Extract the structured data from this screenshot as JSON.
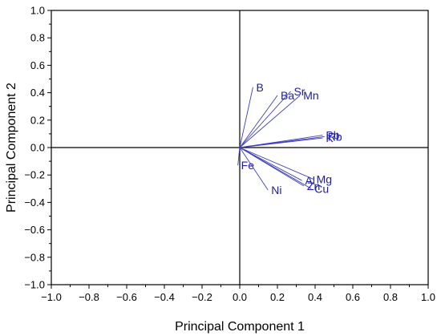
{
  "chart_data": {
    "type": "scatter",
    "subtype": "pca-loading-biplot",
    "title": "",
    "xlabel": "Principal Component 1",
    "ylabel": "Principal Component 2",
    "xlim": [
      -1.0,
      1.0
    ],
    "ylim": [
      -1.0,
      1.0
    ],
    "x_ticks": [
      -1.0,
      -0.8,
      -0.6,
      -0.4,
      -0.2,
      0.0,
      0.2,
      0.4,
      0.6,
      0.8,
      1.0
    ],
    "y_ticks": [
      -1.0,
      -0.8,
      -0.6,
      -0.4,
      -0.2,
      0.0,
      0.2,
      0.4,
      0.6,
      0.8,
      1.0
    ],
    "x_tick_labels": [
      "−1.0",
      "−0.8",
      "−0.6",
      "−0.4",
      "−0.2",
      "0.0",
      "0.2",
      "0.4",
      "0.6",
      "0.8",
      "1.0"
    ],
    "y_tick_labels": [
      "−1.0",
      "−0.8",
      "−0.6",
      "−0.4",
      "−0.2",
      "0.0",
      "0.2",
      "0.4",
      "0.6",
      "0.8",
      "1.0"
    ],
    "grid": false,
    "zero_lines": true,
    "vector_color": "#3f3fbf",
    "label_color": "#2020a0",
    "points": [
      {
        "label": "B",
        "x": 0.07,
        "y": 0.44
      },
      {
        "label": "Ba",
        "x": 0.2,
        "y": 0.38
      },
      {
        "label": "Sr",
        "x": 0.27,
        "y": 0.41
      },
      {
        "label": "Mn",
        "x": 0.32,
        "y": 0.38
      },
      {
        "label": "Pb",
        "x": 0.44,
        "y": 0.09
      },
      {
        "label": "K",
        "x": 0.44,
        "y": 0.07
      },
      {
        "label": "Rb",
        "x": 0.45,
        "y": 0.08
      },
      {
        "label": "Fe",
        "x": -0.01,
        "y": -0.13
      },
      {
        "label": "Ni",
        "x": 0.15,
        "y": -0.31
      },
      {
        "label": "Al",
        "x": 0.33,
        "y": -0.24
      },
      {
        "label": "Mg",
        "x": 0.39,
        "y": -0.23
      },
      {
        "label": "Zn",
        "x": 0.34,
        "y": -0.28
      },
      {
        "label": "Cu",
        "x": 0.38,
        "y": -0.3
      }
    ]
  }
}
